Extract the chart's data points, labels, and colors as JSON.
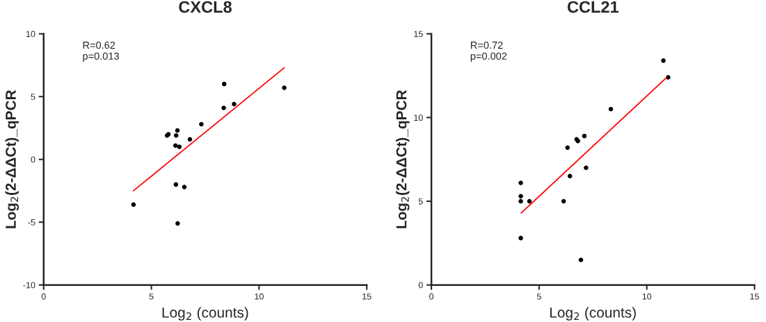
{
  "chart_data": [
    {
      "type": "scatter",
      "title": "CXCL8",
      "xlabel": "Log$_{2}$ (counts)",
      "ylabel": "Log$_{2}$(2-ΔΔCt)_qPCR",
      "annotations": [
        "R=0.62",
        "p=0.013"
      ],
      "xlim": [
        0,
        15
      ],
      "xticks": [
        0,
        5,
        10,
        15
      ],
      "ylim": [
        -10,
        10
      ],
      "yticks": [
        -10,
        -5,
        0,
        5,
        10
      ],
      "grid": false,
      "legend": false,
      "series": [
        {
          "marker": "circle",
          "color": "#000000",
          "x": [
            4.17,
            5.73,
            5.79,
            6.15,
            6.21,
            6.12,
            6.3,
            6.79,
            7.32,
            8.38,
            8.36,
            8.84,
            11.17,
            6.14,
            6.53,
            6.22
          ],
          "values": [
            -3.6,
            1.9,
            2.0,
            1.9,
            2.3,
            1.1,
            1.0,
            1.6,
            2.8,
            6.0,
            4.1,
            4.4,
            5.7,
            -2.0,
            -2.2,
            -5.1
          ]
        },
        {
          "type": "line",
          "color": "#ff0000",
          "x": [
            4.17,
            11.17
          ],
          "values": [
            -2.5,
            7.3
          ]
        }
      ]
    },
    {
      "type": "scatter",
      "title": "CCL21",
      "xlabel": "Log$_{2}$ (counts)",
      "ylabel": "Log$_{2}$(2-ΔΔCt)_qPCR",
      "annotations": [
        "R=0.72",
        "p=0.002"
      ],
      "xlim": [
        0,
        15
      ],
      "xticks": [
        0,
        5,
        10,
        15
      ],
      "ylim": [
        0,
        15
      ],
      "yticks": [
        0,
        5,
        10,
        15
      ],
      "grid": false,
      "legend": false,
      "series": [
        {
          "marker": "circle",
          "color": "#000000",
          "x": [
            10.77,
            10.99,
            8.33,
            7.1,
            6.74,
            6.8,
            6.32,
            7.18,
            6.43,
            4.15,
            4.15,
            4.15,
            4.55,
            6.14,
            4.15,
            6.94
          ],
          "values": [
            13.4,
            12.4,
            10.5,
            8.9,
            8.7,
            8.6,
            8.2,
            7.0,
            6.5,
            6.1,
            5.3,
            5.0,
            5.0,
            5.0,
            2.8,
            1.5
          ]
        },
        {
          "type": "line",
          "color": "#ff0000",
          "x": [
            4.17,
            10.93
          ],
          "values": [
            4.3,
            12.4
          ]
        }
      ]
    }
  ]
}
